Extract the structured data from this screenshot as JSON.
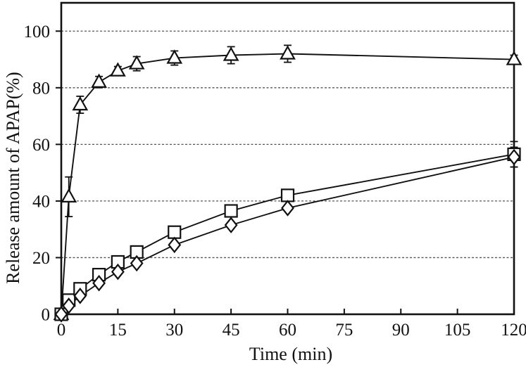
{
  "chart_data": {
    "type": "line",
    "title": "",
    "xlabel": "Time (min)",
    "ylabel": "Release amount of APAP(%)",
    "xlim": [
      0,
      120
    ],
    "ylim": [
      0,
      110
    ],
    "x_ticks": [
      0,
      15,
      30,
      45,
      60,
      75,
      90,
      105,
      120
    ],
    "y_ticks": [
      0,
      20,
      40,
      60,
      80,
      100
    ],
    "grid": "horizontal dashed gridlines at y = 20,40,60,80,100",
    "legend": "none",
    "x": [
      0,
      2,
      5,
      10,
      15,
      20,
      30,
      45,
      60,
      120
    ],
    "series": [
      {
        "name": "triangle-series",
        "marker": "triangle",
        "values": [
          0,
          41.5,
          74,
          82,
          86,
          88.5,
          90.5,
          91.5,
          92,
          90
        ],
        "errors": [
          0,
          7,
          3,
          2,
          1.5,
          2.5,
          2.5,
          3,
          3,
          1.5
        ]
      },
      {
        "name": "square-series",
        "marker": "square",
        "values": [
          0,
          5,
          9,
          14,
          18.5,
          22,
          29,
          36.5,
          42,
          56.5
        ],
        "errors": [
          0,
          0,
          0,
          0,
          0,
          0,
          0,
          0,
          0,
          4.5
        ]
      },
      {
        "name": "diamond-series",
        "marker": "diamond",
        "values": [
          0,
          3,
          6.5,
          11,
          15,
          18,
          24.5,
          31.5,
          37.5,
          55.5
        ],
        "errors": [
          0,
          0,
          0,
          0,
          0,
          0,
          0,
          0,
          0,
          3.5
        ]
      }
    ],
    "colors": {
      "line": "#111111",
      "frame": "#111111",
      "grid": "#555555",
      "marker_fill": "#ffffff",
      "background": "#ffffff"
    }
  }
}
